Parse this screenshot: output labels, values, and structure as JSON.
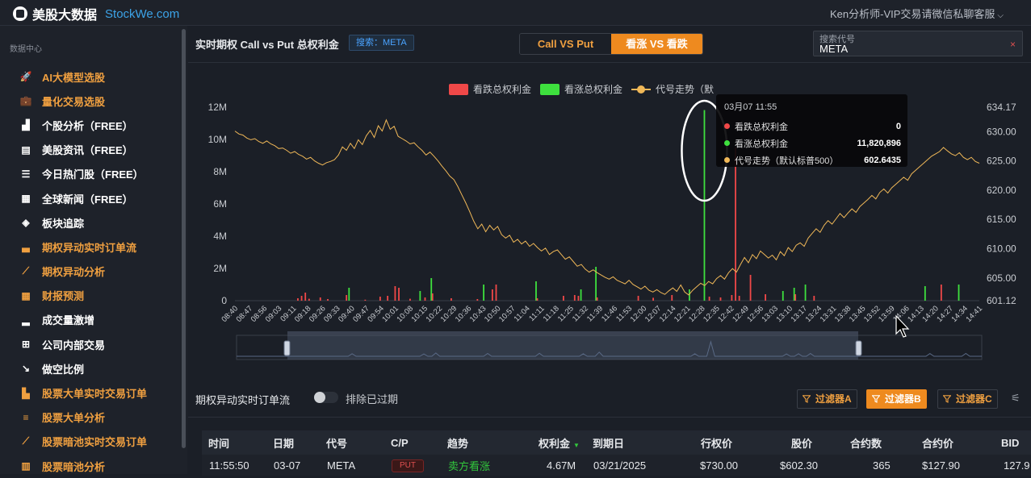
{
  "topbar": {
    "logo_name": "美股大数据",
    "logo_url": "StockWe.com",
    "user_menu": "Ken分析师-VIP交易请微信私聊客服"
  },
  "sidebar": {
    "heading": "数据中心",
    "items": [
      {
        "label": "AI大模型选股",
        "icon": "rocket-icon",
        "color": "orange"
      },
      {
        "label": "量化交易选股",
        "icon": "briefcase-icon",
        "color": "orange"
      },
      {
        "label": "个股分析（FREE）",
        "icon": "stock-chart-icon",
        "color": "white"
      },
      {
        "label": "美股资讯（FREE）",
        "icon": "news-icon",
        "color": "white"
      },
      {
        "label": "今日热门股（FREE）",
        "icon": "list-icon",
        "color": "white"
      },
      {
        "label": "全球新闻（FREE）",
        "icon": "newspaper-icon",
        "color": "white"
      },
      {
        "label": "板块追踪",
        "icon": "layers-icon",
        "color": "white"
      },
      {
        "label": "期权异动实时订单流",
        "icon": "bar-chart-icon",
        "color": "orange"
      },
      {
        "label": "期权异动分析",
        "icon": "line-chart-icon",
        "color": "orange"
      },
      {
        "label": "财报预测",
        "icon": "calendar-icon",
        "color": "orange"
      },
      {
        "label": "成交量激增",
        "icon": "volume-icon",
        "color": "white"
      },
      {
        "label": "公司内部交易",
        "icon": "sitemap-icon",
        "color": "white"
      },
      {
        "label": "做空比例",
        "icon": "trend-down-icon",
        "color": "white"
      },
      {
        "label": "股票大单实时交易订单",
        "icon": "factory-icon",
        "color": "orange"
      },
      {
        "label": "股票大单分析",
        "icon": "sort-bars-icon",
        "color": "orange"
      },
      {
        "label": "股票暗池实时交易订单",
        "icon": "area-chart-icon",
        "color": "orange"
      },
      {
        "label": "股票暗池分析",
        "icon": "column-chart-icon",
        "color": "orange"
      }
    ]
  },
  "panel": {
    "title": "实时期权 Call vs Put 总权利金",
    "search_badge": "搜索：META",
    "tabs": [
      {
        "label": "Call VS Put",
        "active": false
      },
      {
        "label": "看涨 VS 看跌",
        "active": true
      }
    ],
    "search_label": "搜索代号",
    "search_value": "META",
    "search_clear": "×"
  },
  "tooltip": {
    "time": "03月07 11:55",
    "rows": [
      {
        "name": "看跌总权利金",
        "value": "0",
        "color": "#f04848"
      },
      {
        "name": "看涨总权利金",
        "value": "11,820,896",
        "color": "#3ee03e"
      },
      {
        "name": "代号走势（默认标普500）",
        "value": "602.6435",
        "color": "#f0b858"
      }
    ]
  },
  "chart_data": {
    "type": "bar",
    "legend": [
      "看跌总权利金",
      "看涨总权利金",
      "代号走势（默"
    ],
    "legend_colors": [
      "#f04848",
      "#3ee03e",
      "#f0b858"
    ],
    "legend_placement": "top-center",
    "y_left_ticks": [
      "12M",
      "10M",
      "8M",
      "6M",
      "4M",
      "2M",
      "0"
    ],
    "y_right_ticks": [
      "634.17",
      "630.00",
      "625.00",
      "620.00",
      "615.00",
      "610.00",
      "605.00",
      "601.12"
    ],
    "ylim_left": [
      0,
      12000000
    ],
    "ylim_right": [
      601.12,
      634.17
    ],
    "x_ticks": [
      "08:40",
      "08:47",
      "08:56",
      "09:03",
      "09:11",
      "09:18",
      "09:26",
      "09:33",
      "09:40",
      "09:47",
      "09:54",
      "10:01",
      "10:08",
      "10:15",
      "10:22",
      "10:29",
      "10:36",
      "10:43",
      "10:50",
      "10:57",
      "11:04",
      "11:11",
      "11:18",
      "11:25",
      "11:32",
      "11:39",
      "11:46",
      "11:53",
      "12:00",
      "12:07",
      "12:14",
      "12:21",
      "12:28",
      "12:35",
      "12:42",
      "12:49",
      "12:56",
      "13:03",
      "13:10",
      "13:17",
      "13:24",
      "13:31",
      "13:38",
      "13:45",
      "13:52",
      "13:59",
      "14:06",
      "14:13",
      "14:20",
      "14:27",
      "14:34",
      "14:41"
    ],
    "series": [
      {
        "name": "看跌总权利金",
        "kind": "bar",
        "values": [
          0,
          0,
          0,
          0,
          0,
          0,
          0,
          0,
          0,
          0,
          0,
          0,
          0,
          0,
          0,
          0,
          150000,
          300000,
          500000,
          120000,
          0,
          0,
          200000,
          0,
          100000,
          0,
          0,
          0,
          0,
          350000,
          0,
          0,
          0,
          0,
          60000,
          0,
          0,
          0,
          250000,
          0,
          300000,
          0,
          900000,
          800000,
          0,
          0,
          120000,
          0,
          0,
          0,
          200000,
          0,
          450000,
          0,
          0,
          0,
          0,
          150000,
          0,
          0,
          0,
          0,
          0,
          0,
          100000,
          0,
          0,
          0,
          700000,
          1000000,
          0,
          0,
          0,
          0,
          0,
          0,
          0,
          0,
          0,
          0,
          150000,
          0,
          0,
          0,
          0,
          0,
          0,
          300000,
          0,
          0,
          350000,
          300000,
          0,
          0,
          0,
          0,
          200000,
          0,
          0,
          0,
          0,
          0,
          0,
          0,
          0,
          0,
          0,
          300000,
          0,
          0,
          0,
          180000,
          0,
          0,
          0,
          0,
          350000,
          0,
          0,
          0,
          0,
          0,
          0,
          0,
          0,
          0,
          250000,
          0,
          0,
          200000,
          0,
          0,
          350000,
          9500000,
          300000,
          0,
          0,
          1600000,
          0,
          0,
          0,
          400000,
          0,
          0,
          0,
          0,
          0,
          0,
          0,
          400000,
          0,
          0,
          0,
          0,
          300000,
          0,
          0,
          0,
          0,
          0,
          0,
          0,
          0,
          0,
          0,
          0,
          0,
          0,
          0,
          0,
          0,
          0,
          0,
          0,
          0,
          0,
          0,
          0,
          0,
          0,
          0,
          0,
          0,
          0,
          0,
          0,
          0,
          0,
          1000000,
          0,
          0,
          0,
          0,
          0,
          0,
          0,
          0,
          0,
          0
        ]
      },
      {
        "name": "看涨总权利金",
        "kind": "bar",
        "values": [
          0,
          0,
          0,
          0,
          0,
          0,
          0,
          0,
          0,
          0,
          0,
          0,
          0,
          0,
          0,
          0,
          0,
          0,
          0,
          0,
          0,
          0,
          0,
          0,
          0,
          0,
          0,
          0,
          0,
          0,
          800000,
          0,
          0,
          0,
          0,
          0,
          0,
          0,
          0,
          0,
          0,
          0,
          0,
          0,
          0,
          0,
          0,
          0,
          0,
          600000,
          0,
          0,
          1400000,
          0,
          0,
          0,
          0,
          0,
          0,
          0,
          0,
          0,
          0,
          0,
          0,
          0,
          1000000,
          0,
          0,
          0,
          0,
          0,
          0,
          0,
          0,
          0,
          0,
          0,
          0,
          0,
          1200000,
          0,
          0,
          0,
          0,
          0,
          0,
          0,
          0,
          0,
          0,
          0,
          700000,
          0,
          0,
          0,
          2100000,
          0,
          0,
          0,
          0,
          0,
          0,
          0,
          0,
          0,
          0,
          0,
          0,
          0,
          0,
          0,
          0,
          0,
          0,
          0,
          0,
          0,
          0,
          0,
          0,
          700000,
          0,
          0,
          0,
          11820896,
          0,
          0,
          0,
          0,
          0,
          0,
          0,
          0,
          0,
          0,
          0,
          0,
          0,
          0,
          0,
          0,
          0,
          0,
          0,
          0,
          600000,
          0,
          0,
          800000,
          0,
          0,
          1000000,
          0,
          0,
          0,
          0,
          0,
          0,
          0,
          0,
          0,
          0,
          0,
          0,
          0,
          0,
          0,
          0,
          0,
          0,
          0,
          0,
          0,
          0,
          0,
          0,
          0,
          0,
          0,
          0,
          0,
          0,
          0,
          900000,
          0,
          0,
          0,
          0,
          0,
          0,
          0,
          0,
          1000000,
          0,
          0,
          0,
          0,
          0,
          0,
          0,
          0,
          0,
          0,
          0,
          0
        ]
      },
      {
        "name": "代号走势（默认标普500）",
        "kind": "line",
        "values": [
          630.1,
          629.6,
          629.4,
          628.9,
          628.6,
          628.8,
          628.3,
          628.0,
          628.4,
          627.9,
          627.6,
          627.1,
          627.2,
          626.8,
          626.3,
          626.6,
          626.1,
          625.8,
          625.3,
          625.6,
          625.0,
          624.6,
          624.3,
          624.7,
          624.9,
          625.2,
          626.0,
          627.4,
          626.8,
          628.0,
          627.1,
          628.6,
          627.8,
          629.3,
          630.2,
          629.0,
          631.0,
          630.1,
          632.0,
          630.4,
          630.9,
          629.2,
          628.8,
          628.4,
          627.9,
          628.1,
          627.4,
          626.8,
          626.0,
          626.5,
          625.8,
          625.0,
          624.1,
          623.3,
          622.4,
          621.8,
          620.6,
          619.2,
          617.8,
          616.3,
          614.7,
          613.4,
          614.2,
          612.9,
          614.0,
          613.2,
          613.8,
          612.4,
          611.8,
          612.3,
          611.1,
          611.6,
          610.8,
          611.3,
          610.4,
          610.9,
          610.2,
          609.6,
          610.1,
          609.0,
          609.5,
          609.8,
          609.0,
          608.2,
          608.6,
          607.8,
          607.0,
          607.3,
          606.5,
          606.0,
          606.4,
          605.9,
          605.5,
          605.1,
          604.8,
          605.2,
          604.6,
          604.3,
          604.0,
          604.6,
          603.9,
          603.5,
          603.1,
          603.6,
          602.9,
          602.6,
          603.0,
          602.5,
          602.2,
          602.8,
          603.3,
          602.7,
          603.8,
          602.6,
          602.1,
          602.9,
          603.5,
          604.1,
          603.7,
          604.4,
          604.0,
          604.9,
          605.4,
          604.8,
          605.9,
          606.6,
          606.0,
          607.3,
          608.5,
          607.6,
          609.0,
          608.3,
          609.6,
          609.0,
          608.4,
          608.9,
          608.1,
          609.5,
          608.8,
          610.2,
          609.5,
          610.6,
          611.0,
          610.4,
          611.8,
          612.6,
          613.4,
          612.8,
          614.0,
          614.8,
          614.2,
          615.1,
          616.0,
          615.3,
          616.1,
          616.8,
          616.2,
          617.2,
          617.8,
          618.4,
          619.1,
          618.5,
          619.6,
          620.2,
          619.5,
          620.4,
          621.0,
          621.6,
          622.2,
          621.7,
          622.8,
          623.4,
          624.0,
          624.6,
          625.2,
          625.8,
          626.2,
          626.6,
          627.3,
          626.7,
          626.2,
          625.9,
          626.4,
          625.6,
          625.2,
          625.6,
          624.9,
          624.6
        ]
      }
    ],
    "grid": false
  },
  "order_flow": {
    "title": "期权异动实时订单流",
    "toggle_label": "排除已过期",
    "filters": [
      {
        "label": "过滤器A",
        "active": false
      },
      {
        "label": "过滤器B",
        "active": true
      },
      {
        "label": "过滤器C",
        "active": false
      }
    ],
    "settings_icon": "column-settings-icon"
  },
  "table": {
    "columns": [
      "时间",
      "日期",
      "代号",
      "C/P",
      "趋势",
      "权利金",
      "到期日",
      "行权价",
      "股价",
      "合约数",
      "合约价",
      "BID"
    ],
    "rows": [
      [
        "11:55:50",
        "03-07",
        "META",
        "PUT",
        "卖方看涨",
        "4.67M",
        "03/21/2025",
        "$730.00",
        "$602.30",
        "365",
        "$127.90",
        "127.9"
      ]
    ]
  }
}
